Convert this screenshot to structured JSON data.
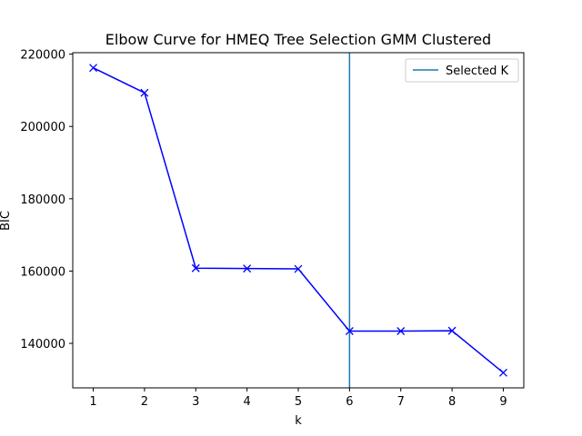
{
  "chart_data": {
    "type": "line",
    "title": "Elbow Curve for HMEQ Tree Selection GMM Clustered",
    "xlabel": "k",
    "ylabel": "BIC",
    "x": [
      1,
      2,
      3,
      4,
      5,
      6,
      7,
      8,
      9
    ],
    "series": [
      {
        "values": [
          216200,
          209300,
          160800,
          160700,
          160600,
          143400,
          143400,
          143500,
          131900
        ],
        "color": "#0000ff",
        "marker": "x"
      }
    ],
    "vline": {
      "x": 6,
      "name": "Selected K",
      "color": "#1f77b4"
    },
    "xlim": [
      0.6,
      9.4
    ],
    "ylim": [
      127700,
      220400
    ],
    "xticks": [
      1,
      2,
      3,
      4,
      5,
      6,
      7,
      8,
      9
    ],
    "yticks": [
      140000,
      160000,
      180000,
      200000,
      220000
    ],
    "grid": false,
    "legend": "top-right"
  }
}
